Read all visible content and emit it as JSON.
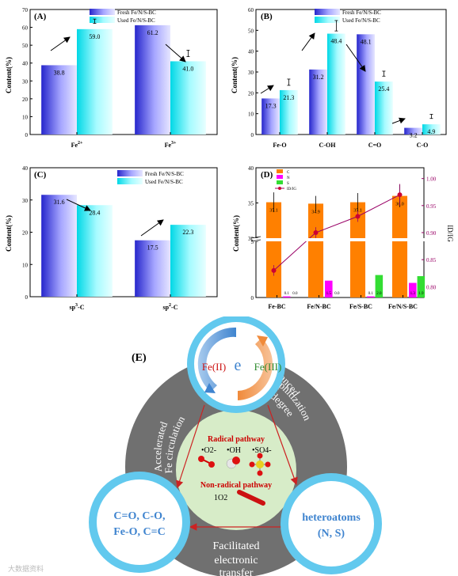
{
  "colors": {
    "fresh_bar": "#3d3dd8",
    "used_bar": "#1ee0ea",
    "orange": "#ff8000",
    "magenta": "#ff00ff",
    "green": "#33dd33",
    "purple_line": "#990066",
    "circle_ring": "#62c9ee",
    "gray_ring": "#707070",
    "inner_circle": "#d7ecc8",
    "arrow_red": "#cc2222"
  },
  "chart_data": [
    {
      "id": "A",
      "type": "bar",
      "panel_label": "(A)",
      "ylabel": "Content(%)",
      "ylim": [
        0,
        70
      ],
      "yticks": [
        "0",
        "10",
        "20",
        "30",
        "40",
        "50",
        "60",
        "70"
      ],
      "categories": [
        "Fe2+",
        "Fe3+"
      ],
      "category_labels": [
        {
          "base": "Fe",
          "sup": "2+"
        },
        {
          "base": "Fe",
          "sup": "3+"
        }
      ],
      "series": [
        {
          "name": "Fresh Fe/N/S-BC",
          "values": [
            38.8,
            61.2
          ],
          "labels": [
            "38.8",
            "61.2"
          ],
          "errors": [
            null,
            null
          ]
        },
        {
          "name": "Used Fe/N/S-BC",
          "values": [
            59.0,
            41.0
          ],
          "labels": [
            "59.0",
            "41.0"
          ],
          "errors": [
            1.2,
            1.8
          ]
        }
      ]
    },
    {
      "id": "B",
      "type": "bar",
      "panel_label": "(B)",
      "ylabel": "Content(%)",
      "ylim": [
        0,
        60
      ],
      "yticks": [
        "0",
        "10",
        "20",
        "30",
        "40",
        "50",
        "60"
      ],
      "categories": [
        "Fe-O",
        "C-OH",
        "C=O",
        "C-O"
      ],
      "category_labels": [
        {
          "base": "Fe-O",
          "sup": ""
        },
        {
          "base": "C-OH",
          "sup": ""
        },
        {
          "base": "C=O",
          "sup": ""
        },
        {
          "base": "C-O",
          "sup": ""
        }
      ],
      "series": [
        {
          "name": "Fresh Fe/N/S-BC",
          "values": [
            17.3,
            31.2,
            48.1,
            3.2
          ],
          "labels": [
            "17.3",
            "31.2",
            "48.1",
            "3.2"
          ],
          "errors": [
            null,
            null,
            null,
            null
          ]
        },
        {
          "name": "Used Fe/N/S-BC",
          "values": [
            21.3,
            48.4,
            25.4,
            4.9
          ],
          "labels": [
            "21.3",
            "48.4",
            "25.4",
            "4.9"
          ],
          "errors": [
            1.5,
            2.5,
            1.2,
            1.0
          ]
        }
      ]
    },
    {
      "id": "C",
      "type": "bar",
      "panel_label": "(C)",
      "ylabel": "Content(%)",
      "ylim": [
        0,
        40
      ],
      "yticks": [
        "0",
        "10",
        "20",
        "30",
        "40"
      ],
      "categories": [
        "sp3-C",
        "sp2-C"
      ],
      "category_labels": [
        {
          "base": "sp",
          "sup": "3",
          "tail": "-C"
        },
        {
          "base": "sp",
          "sup": "2",
          "tail": "-C"
        }
      ],
      "series": [
        {
          "name": "Fresh Fe/N/S-BC",
          "values": [
            31.6,
            17.5
          ],
          "labels": [
            "31.6",
            "17.5"
          ],
          "errors": [
            null,
            null
          ]
        },
        {
          "name": "Used Fe/N/S-BC",
          "values": [
            28.4,
            22.3
          ],
          "labels": [
            "28.4",
            "22.3"
          ],
          "errors": [
            null,
            null
          ]
        }
      ]
    },
    {
      "id": "D",
      "type": "bar",
      "panel_label": "(D)",
      "ylabel": "Content(%)",
      "y2label": "ID/IG",
      "ylim_lower": [
        0,
        5
      ],
      "ylim_upper": [
        30,
        40
      ],
      "yticks_lower": [
        "0",
        "5"
      ],
      "yticks_upper": [
        "30",
        "35",
        "40"
      ],
      "y2lim": [
        0.78,
        1.02
      ],
      "y2ticks": [
        "0.80",
        "0.85",
        "0.90",
        "0.95",
        "1.00"
      ],
      "categories": [
        "Fe-BC",
        "Fe/N-BC",
        "Fe/S-BC",
        "Fe/N/S-BC"
      ],
      "legend": [
        "C",
        "N",
        "S",
        "ID/IG"
      ],
      "series": [
        {
          "name": "C",
          "values": [
            35.1,
            34.9,
            35.1,
            36.0
          ],
          "labels": [
            "35.1",
            "34.9",
            "35.1",
            "36.0"
          ],
          "errors": [
            1.4,
            1.1,
            1.3,
            1.6
          ]
        },
        {
          "name": "N",
          "values": [
            0.1,
            1.5,
            0.1,
            1.3
          ],
          "labels": [
            "0.1",
            "1.5",
            "0.1",
            "1.3"
          ],
          "errors": [
            0.0,
            0.3,
            0.0,
            0.3
          ]
        },
        {
          "name": "S",
          "values": [
            0.0,
            0.0,
            2.0,
            1.9
          ],
          "labels": [
            "0.0",
            "0.0",
            "2.0",
            "1.9"
          ],
          "errors": [
            0.0,
            0.0,
            0.4,
            0.4
          ]
        }
      ],
      "line": {
        "name": "ID/IG",
        "values": [
          0.83,
          0.9,
          0.93,
          0.97
        ],
        "errors": [
          0.01,
          0.01,
          0.01,
          0.02
        ]
      }
    }
  ],
  "diagram": {
    "panel_label": "(E)",
    "center_letter": "e",
    "fe2_label": "Fe(II)",
    "fe3_label": "Fe(III)",
    "left_arc": [
      "Accelerated",
      "Fe circulation"
    ],
    "right_arc": [
      "Enhanced",
      "graphitization",
      "degree"
    ],
    "bottom_arc": [
      "Facilitated",
      "electronic",
      "transfer"
    ],
    "radical_title": "Radical pathway",
    "radical_species": [
      "•O2-",
      "•OH",
      "•SO4-"
    ],
    "nonradical_title": "Non-radical pathway",
    "nonradical_species": "1O2",
    "left_bubble": [
      "C=O, C-O,",
      "Fe-O, C=C"
    ],
    "right_bubble": [
      "heteroatoms",
      "(N, S)"
    ]
  },
  "watermark": "大数据资料"
}
